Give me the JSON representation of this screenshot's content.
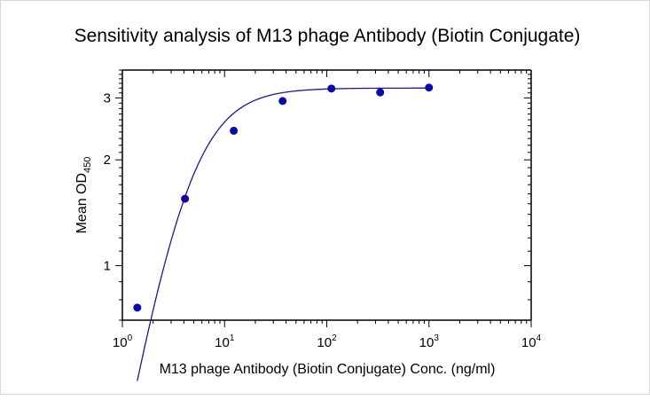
{
  "chart_data": {
    "type": "scatter",
    "title": "Sensitivity analysis of M13 phage Antibody (Biotin Conjugate)",
    "xlabel": "M13 phage Antibody (Biotin Conjugate) Conc. (ng/ml)",
    "ylabel_main": "Mean OD",
    "ylabel_sub": "450",
    "x_scale": "log",
    "y_scale": "log",
    "xlim": [
      1,
      10000
    ],
    "ylim": [
      0.7,
      3.6
    ],
    "x_tick_base": "10",
    "x_ticks": [
      {
        "value": 1,
        "exp": "0"
      },
      {
        "value": 10,
        "exp": "1"
      },
      {
        "value": 100,
        "exp": "2"
      },
      {
        "value": 1000,
        "exp": "3"
      },
      {
        "value": 10000,
        "exp": "4"
      }
    ],
    "y_ticks": [
      {
        "value": 1,
        "label": "1"
      },
      {
        "value": 2,
        "label": "2"
      },
      {
        "value": 3,
        "label": "3"
      }
    ],
    "series": [
      {
        "points": [
          {
            "x": 1.4,
            "y": 0.76
          },
          {
            "x": 4.1,
            "y": 1.55
          },
          {
            "x": 12.3,
            "y": 2.42
          },
          {
            "x": 37,
            "y": 2.94
          },
          {
            "x": 111,
            "y": 3.19
          },
          {
            "x": 333,
            "y": 3.11
          },
          {
            "x": 1000,
            "y": 3.21
          }
        ],
        "fit": {
          "top": 3.2,
          "bottom": 0,
          "ec50": 4.2,
          "hill": 1.6
        },
        "color": "#0a0aa0",
        "line_color": "#1a1a8c"
      }
    ],
    "grid": false,
    "legend": "none"
  }
}
